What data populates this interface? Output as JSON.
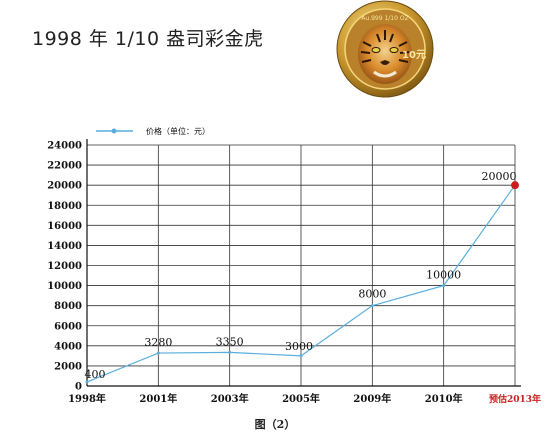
{
  "title": "1998 年 1/10 盎司彩金虎",
  "coin": {
    "inscription": "Au.999 1/10 OZ",
    "denomination": "10元"
  },
  "caption": "图（2）",
  "colors": {
    "line": "#5aaedd",
    "highlight_point": "#c81e1e",
    "highlight_label": "#c81e1e",
    "grid": "#333333"
  },
  "chart_data": {
    "type": "line",
    "categories": [
      "1998年",
      "2001年",
      "2003年",
      "2005年",
      "2009年",
      "2010年",
      "预估2013年"
    ],
    "series": [
      {
        "name": "价格（单位：元）",
        "values": [
          400,
          3280,
          3350,
          3000,
          8000,
          10000,
          20000
        ]
      }
    ],
    "data_labels": [
      "400",
      "3280",
      "3350",
      "3000",
      "8000",
      "10000",
      "20000"
    ],
    "ylim": [
      0,
      24000
    ],
    "yticks": [
      0,
      2000,
      4000,
      6000,
      8000,
      10000,
      12000,
      14000,
      16000,
      18000,
      20000,
      22000,
      24000
    ],
    "grid": true,
    "legend_position": "top-left",
    "highlight_last_point": true
  }
}
